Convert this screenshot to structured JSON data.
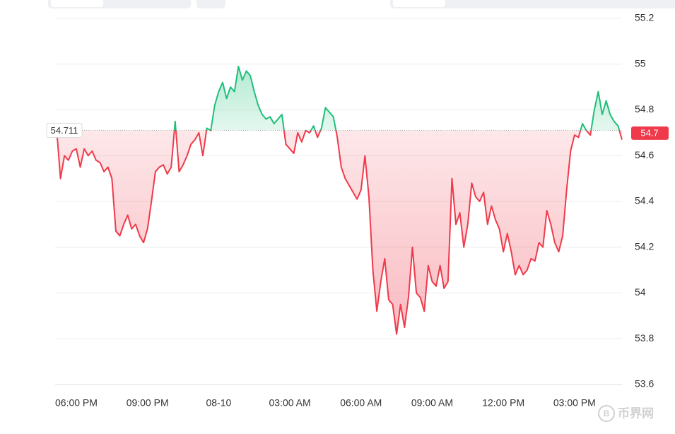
{
  "chart_data": {
    "type": "baseline-area",
    "categories": [
      null,
      null,
      null,
      null,
      null,
      "06:00 PM",
      null,
      null,
      null,
      null,
      null,
      null,
      null,
      null,
      null,
      null,
      null,
      null,
      null,
      null,
      null,
      null,
      null,
      "09:00 PM",
      null,
      null,
      null,
      null,
      null,
      null,
      null,
      null,
      null,
      null,
      null,
      null,
      null,
      null,
      null,
      null,
      null,
      "08-10",
      null,
      null,
      null,
      null,
      null,
      null,
      null,
      null,
      null,
      null,
      null,
      null,
      null,
      null,
      null,
      null,
      null,
      "03:00 AM",
      null,
      null,
      null,
      null,
      null,
      null,
      null,
      null,
      null,
      null,
      null,
      null,
      null,
      null,
      null,
      null,
      null,
      "06:00 AM",
      null,
      null,
      null,
      null,
      null,
      null,
      null,
      null,
      null,
      null,
      null,
      null,
      null,
      null,
      null,
      null,
      null,
      "09:00 AM",
      null,
      null,
      null,
      null,
      null,
      null,
      null,
      null,
      null,
      null,
      null,
      null,
      null,
      null,
      null,
      null,
      null,
      "12:00 PM",
      null,
      null,
      null,
      null,
      null,
      null,
      null,
      null,
      null,
      null,
      null,
      null,
      null,
      null,
      null,
      null,
      null,
      "03:00 PM",
      null,
      null,
      null,
      null,
      null,
      null,
      null,
      null,
      null,
      null,
      null,
      null
    ],
    "values": [
      54.72,
      54.5,
      54.6,
      54.58,
      54.62,
      54.63,
      54.55,
      54.63,
      54.6,
      54.62,
      54.58,
      54.57,
      54.53,
      54.55,
      54.5,
      54.27,
      54.25,
      54.3,
      54.34,
      54.28,
      54.3,
      54.25,
      54.22,
      54.28,
      54.4,
      54.53,
      54.55,
      54.56,
      54.52,
      54.55,
      54.75,
      54.53,
      54.56,
      54.6,
      54.65,
      54.67,
      54.7,
      54.6,
      54.72,
      54.71,
      54.82,
      54.88,
      54.92,
      54.85,
      54.9,
      54.88,
      54.99,
      54.93,
      54.97,
      54.95,
      54.88,
      54.82,
      54.78,
      54.76,
      54.77,
      54.74,
      54.76,
      54.78,
      54.65,
      54.63,
      54.61,
      54.7,
      54.66,
      54.71,
      54.7,
      54.73,
      54.68,
      54.72,
      54.81,
      54.79,
      54.77,
      54.68,
      54.55,
      54.5,
      54.47,
      54.44,
      54.41,
      54.45,
      54.6,
      54.42,
      54.1,
      53.92,
      54.05,
      54.15,
      53.97,
      53.95,
      53.82,
      53.95,
      53.85,
      53.98,
      54.2,
      54.0,
      53.98,
      53.92,
      54.12,
      54.05,
      54.03,
      54.12,
      54.02,
      54.05,
      54.5,
      54.3,
      54.35,
      54.2,
      54.3,
      54.48,
      54.42,
      54.4,
      54.44,
      54.3,
      54.38,
      54.32,
      54.28,
      54.18,
      54.26,
      54.18,
      54.08,
      54.12,
      54.08,
      54.1,
      54.15,
      54.14,
      54.22,
      54.2,
      54.36,
      54.3,
      54.22,
      54.18,
      54.25,
      54.45,
      54.62,
      54.69,
      54.68,
      54.74,
      54.71,
      54.69,
      54.8,
      54.88,
      54.78,
      54.84,
      54.78,
      54.75,
      54.73,
      54.67
    ],
    "baseline": 54.711,
    "last_price": 54.7,
    "up_color": "#1fbf7a",
    "down_color": "#ef3a4b",
    "ylim": [
      53.6,
      55.2
    ],
    "yticks": [
      53.6,
      53.8,
      54,
      54.2,
      54.4,
      54.6,
      54.8,
      55,
      55.2
    ],
    "grid": true,
    "watermark": "币界网"
  }
}
